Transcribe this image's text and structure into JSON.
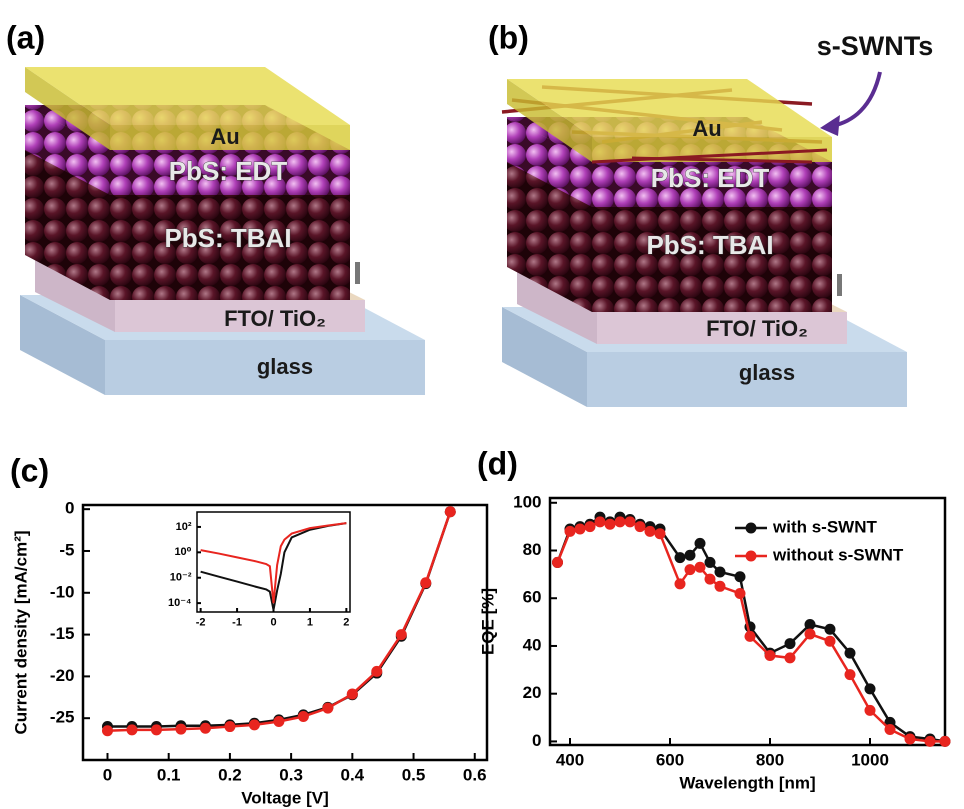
{
  "diagrams": [
    {
      "label": "(a)",
      "layers": [
        "Au",
        "PbS: EDT",
        "PbS: TBAI",
        "FTO/ TiO₂",
        "glass"
      ]
    },
    {
      "label": "(b)",
      "callout": "s-SWNTs",
      "layers": [
        "Au",
        "PbS: EDT",
        "PbS: TBAI",
        "FTO/ TiO₂",
        "glass"
      ]
    }
  ],
  "chart_data": [
    {
      "type": "line",
      "panel_label": "(c)",
      "xlabel": "Voltage [V]",
      "ylabel": "Current density [mA/cm²]",
      "x": [
        0,
        0.04,
        0.08,
        0.12,
        0.16,
        0.2,
        0.24,
        0.28,
        0.32,
        0.36,
        0.4,
        0.44,
        0.48,
        0.52,
        0.56
      ],
      "series": [
        {
          "color": "#111111",
          "values": [
            -26.0,
            -26.0,
            -26.0,
            -25.9,
            -25.9,
            -25.8,
            -25.6,
            -25.2,
            -24.6,
            -23.7,
            -22.2,
            -19.6,
            -15.2,
            -8.9,
            -0.3
          ]
        },
        {
          "color": "#e8251f",
          "values": [
            -26.5,
            -26.4,
            -26.4,
            -26.3,
            -26.2,
            -26.0,
            -25.8,
            -25.4,
            -24.8,
            -23.8,
            -22.1,
            -19.4,
            -15.0,
            -8.8,
            -0.3
          ]
        }
      ],
      "markers": true,
      "xlim": [
        -0.04,
        0.62
      ],
      "ylim": [
        -30,
        0.5
      ],
      "xticks": [
        0,
        0.1,
        0.2,
        0.3,
        0.4,
        0.5,
        0.6
      ],
      "yticks": [
        0,
        -5,
        -10,
        -15,
        -20,
        -25
      ],
      "inset": {
        "type": "line",
        "log_y": true,
        "x": [
          -2,
          -1.5,
          -1,
          -0.5,
          -0.2,
          -0.1,
          0,
          0.1,
          0.2,
          0.3,
          0.5,
          1,
          1.5,
          2
        ],
        "series": [
          {
            "color": "#111111",
            "values": [
              0.03,
              0.012,
              0.005,
              0.002,
              0.0012,
              0.0008,
              3e-05,
              0.001,
              0.02,
              1,
              15,
              60,
              120,
              200
            ]
          },
          {
            "color": "#e8251f",
            "values": [
              1.5,
              0.8,
              0.4,
              0.2,
              0.12,
              0.08,
              0.0001,
              0.1,
              3,
              10,
              30,
              80,
              130,
              200
            ]
          }
        ],
        "markers": false,
        "xlim": [
          -2.1,
          2.1
        ],
        "ylim": [
          2e-05,
          1500
        ],
        "xticks": [
          -2,
          -1,
          0,
          1,
          2
        ],
        "yticks": [
          {
            "value": 100,
            "label": "10²"
          },
          {
            "value": 1,
            "label": "10⁰"
          },
          {
            "value": 0.01,
            "label": "10⁻²"
          },
          {
            "value": 0.0001,
            "label": "10⁻⁴"
          }
        ]
      }
    },
    {
      "type": "line",
      "panel_label": "(d)",
      "xlabel": "Wavelength [nm]",
      "ylabel": "EQE [%]",
      "x": [
        375,
        400,
        420,
        440,
        460,
        480,
        500,
        520,
        540,
        560,
        580,
        620,
        640,
        660,
        680,
        700,
        740,
        760,
        800,
        840,
        880,
        920,
        960,
        1000,
        1040,
        1080,
        1120,
        1150
      ],
      "series": [
        {
          "name": "with s-SWNT",
          "color": "#111111",
          "values": [
            75,
            89,
            90,
            91,
            94,
            92,
            94,
            93,
            91,
            90,
            89,
            77,
            78,
            83,
            75,
            71,
            69,
            48,
            37,
            41,
            49,
            47,
            37,
            22,
            8,
            2,
            1,
            0
          ]
        },
        {
          "name": "without s-SWNT",
          "color": "#e8251f",
          "values": [
            75,
            88,
            89,
            90,
            92,
            91,
            92,
            92,
            90,
            88,
            87,
            66,
            72,
            73,
            68,
            65,
            62,
            44,
            36,
            35,
            45,
            42,
            28,
            13,
            5,
            1,
            0,
            0
          ]
        }
      ],
      "markers": true,
      "legend": "upper right",
      "xlim": [
        360,
        1150
      ],
      "ylim": [
        -1.5,
        102
      ],
      "xticks": [
        400,
        600,
        800,
        1000
      ],
      "yticks": [
        0,
        20,
        40,
        60,
        80,
        100
      ]
    }
  ]
}
